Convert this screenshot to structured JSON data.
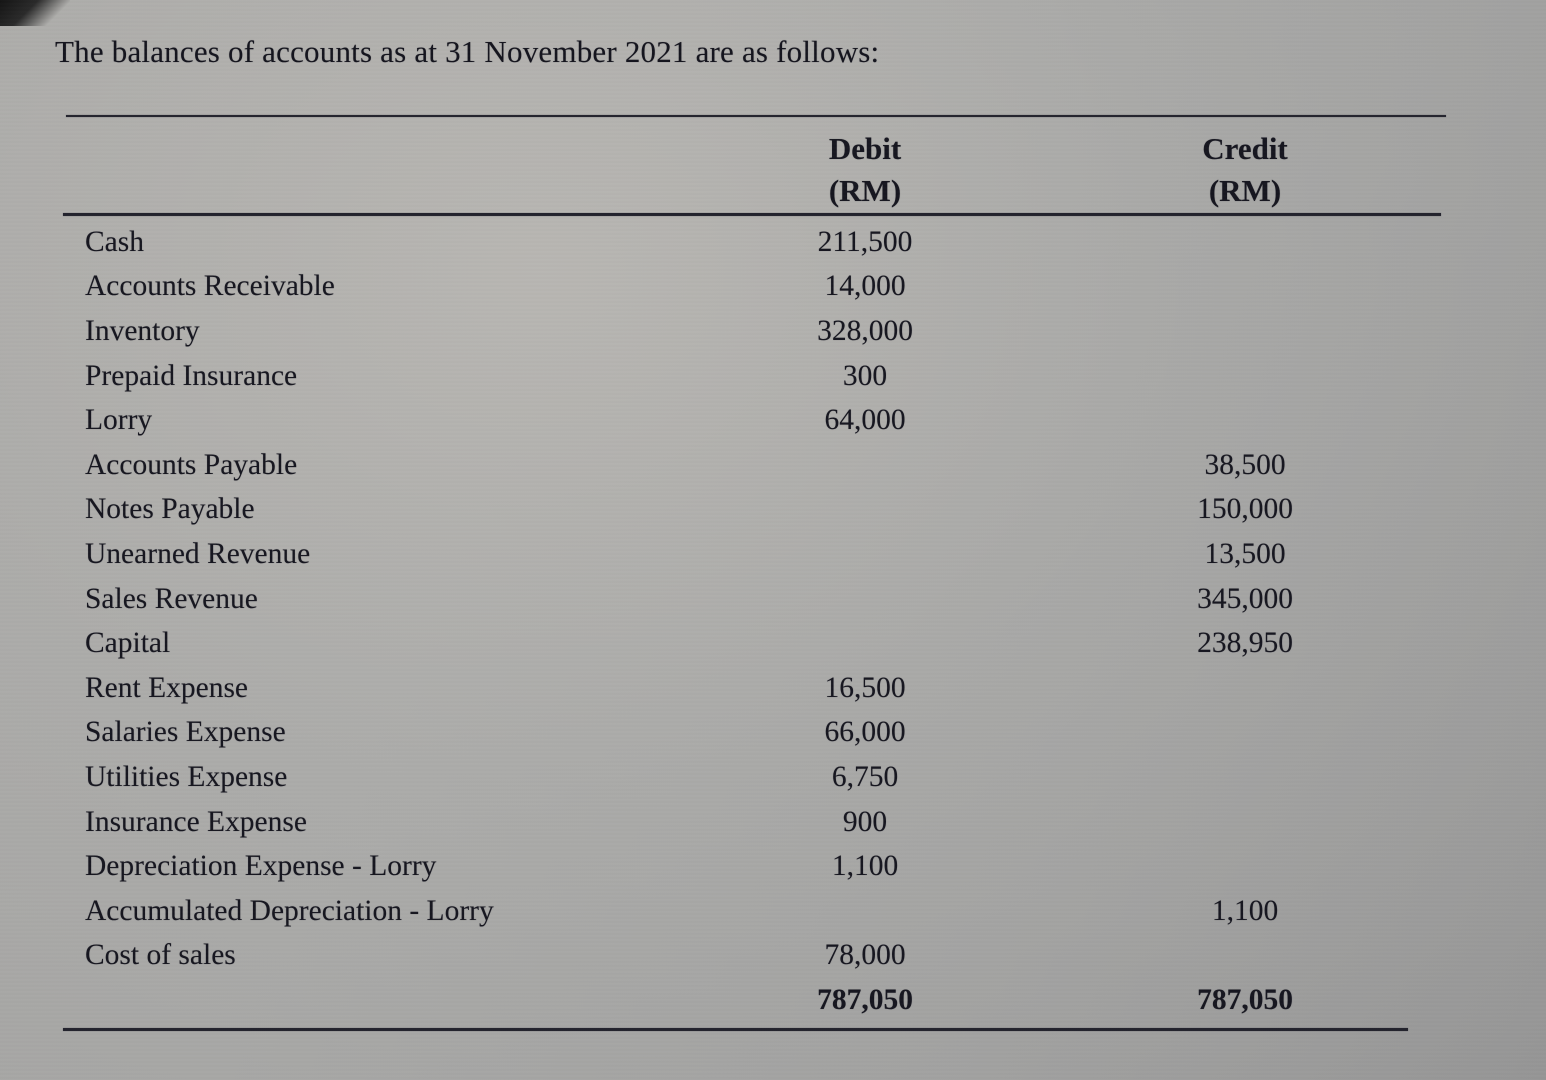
{
  "document": {
    "title": "The balances of accounts as at 31 November 2021 are as follows:",
    "table": {
      "debit_header": "Debit",
      "debit_unit": "(RM)",
      "credit_header": "Credit",
      "credit_unit": "(RM)",
      "rows": [
        {
          "account": "Cash",
          "debit": "211,500",
          "credit": ""
        },
        {
          "account": "Accounts Receivable",
          "debit": "14,000",
          "credit": ""
        },
        {
          "account": "Inventory",
          "debit": "328,000",
          "credit": ""
        },
        {
          "account": "Prepaid Insurance",
          "debit": "300",
          "credit": ""
        },
        {
          "account": "Lorry",
          "debit": "64,000",
          "credit": ""
        },
        {
          "account": "Accounts Payable",
          "debit": "",
          "credit": "38,500"
        },
        {
          "account": "Notes Payable",
          "debit": "",
          "credit": "150,000"
        },
        {
          "account": "Unearned Revenue",
          "debit": "",
          "credit": "13,500"
        },
        {
          "account": "Sales Revenue",
          "debit": "",
          "credit": "345,000"
        },
        {
          "account": "Capital",
          "debit": "",
          "credit": "238,950"
        },
        {
          "account": "Rent Expense",
          "debit": "16,500",
          "credit": ""
        },
        {
          "account": "Salaries Expense",
          "debit": "66,000",
          "credit": ""
        },
        {
          "account": "Utilities Expense",
          "debit": "6,750",
          "credit": ""
        },
        {
          "account": "Insurance Expense",
          "debit": "900",
          "credit": ""
        },
        {
          "account": "Depreciation Expense - Lorry",
          "debit": "1,100",
          "credit": ""
        },
        {
          "account": "Accumulated Depreciation - Lorry",
          "debit": "",
          "credit": "1,100"
        },
        {
          "account": "Cost of sales",
          "debit": "78,000",
          "credit": ""
        }
      ],
      "totals": {
        "debit": "787,050",
        "credit": "787,050"
      }
    }
  }
}
